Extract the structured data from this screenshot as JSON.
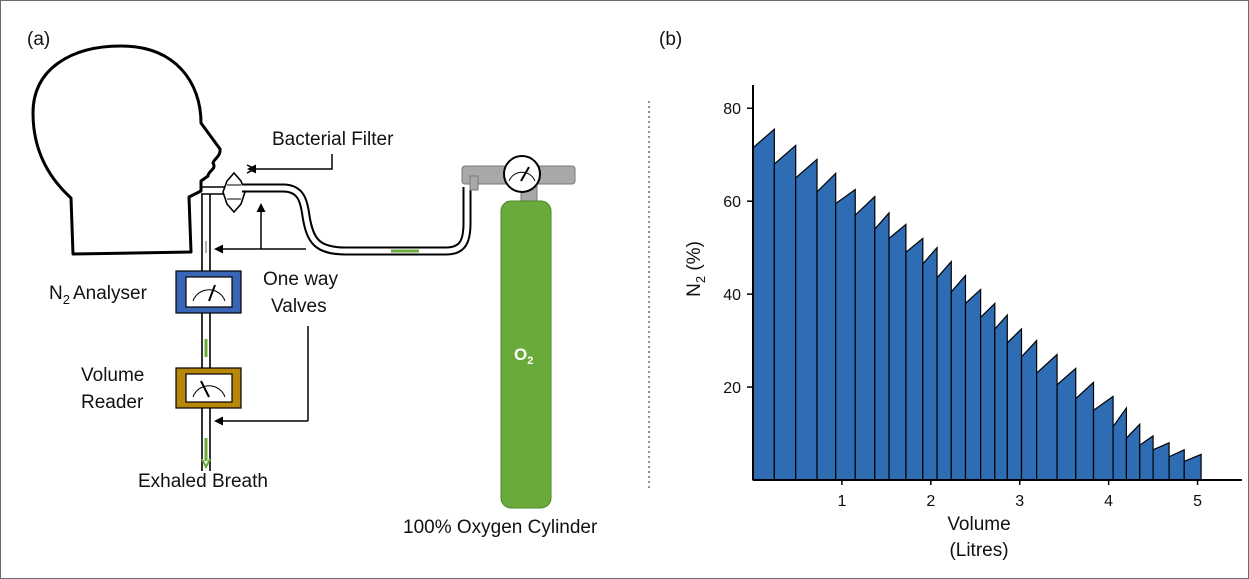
{
  "panel_a": {
    "label": "(a)",
    "labels": {
      "bacterial_filter": "Bacterial Filter",
      "n2_analyser": "Analyser",
      "n2_prefix": "N",
      "n2_sub": "2",
      "one_way": "One way",
      "valves": "Valves",
      "volume": "Volume",
      "reader": "Reader",
      "exhaled": "Exhaled Breath",
      "cylinder_caption": "100% Oxygen Cylinder",
      "o2_main": "O",
      "o2_sub": "2"
    },
    "colors": {
      "analyser_box": "#3a66b8",
      "reader_box": "#b8860b",
      "cylinder": "#6aaa3a",
      "regulator": "#a8a8a8",
      "flow_marks": "#6aaa3a"
    }
  },
  "panel_b": {
    "label": "(b)"
  },
  "chart_data": {
    "type": "bar",
    "xlabel": "Volume",
    "xlabel_unit": "(Litres)",
    "ylabel_main": "N",
    "ylabel_sub": "2",
    "ylabel_unit": " (%)",
    "xlim": [
      0,
      5.5
    ],
    "ylim": [
      0,
      85
    ],
    "x_ticks": [
      1,
      2,
      3,
      4,
      5
    ],
    "y_ticks": [
      20,
      40,
      60,
      80
    ],
    "bar_color": "#2e6db4",
    "breaths": [
      {
        "x0": 0.0,
        "x1": 0.24,
        "start": 71.5,
        "end": 75.5
      },
      {
        "x0": 0.24,
        "x1": 0.48,
        "start": 68.0,
        "end": 72.0
      },
      {
        "x0": 0.48,
        "x1": 0.72,
        "start": 65.0,
        "end": 69.0
      },
      {
        "x0": 0.72,
        "x1": 0.93,
        "start": 62.0,
        "end": 66.0
      },
      {
        "x0": 0.93,
        "x1": 1.15,
        "start": 59.5,
        "end": 62.5
      },
      {
        "x0": 1.15,
        "x1": 1.37,
        "start": 57.0,
        "end": 61.0
      },
      {
        "x0": 1.37,
        "x1": 1.53,
        "start": 54.0,
        "end": 57.5
      },
      {
        "x0": 1.53,
        "x1": 1.72,
        "start": 52.0,
        "end": 55.0
      },
      {
        "x0": 1.72,
        "x1": 1.91,
        "start": 49.0,
        "end": 52.0
      },
      {
        "x0": 1.91,
        "x1": 2.07,
        "start": 46.5,
        "end": 50.0
      },
      {
        "x0": 2.07,
        "x1": 2.23,
        "start": 43.5,
        "end": 47.0
      },
      {
        "x0": 2.23,
        "x1": 2.39,
        "start": 40.5,
        "end": 44.0
      },
      {
        "x0": 2.39,
        "x1": 2.56,
        "start": 38.0,
        "end": 41.0
      },
      {
        "x0": 2.56,
        "x1": 2.72,
        "start": 35.0,
        "end": 38.0
      },
      {
        "x0": 2.72,
        "x1": 2.86,
        "start": 32.5,
        "end": 35.5
      },
      {
        "x0": 2.86,
        "x1": 3.02,
        "start": 29.5,
        "end": 32.5
      },
      {
        "x0": 3.02,
        "x1": 3.19,
        "start": 26.5,
        "end": 30.0
      },
      {
        "x0": 3.19,
        "x1": 3.42,
        "start": 23.0,
        "end": 27.0
      },
      {
        "x0": 3.42,
        "x1": 3.63,
        "start": 20.5,
        "end": 24.0
      },
      {
        "x0": 3.63,
        "x1": 3.83,
        "start": 17.5,
        "end": 21.0
      },
      {
        "x0": 3.83,
        "x1": 4.05,
        "start": 15.0,
        "end": 18.0
      },
      {
        "x0": 4.05,
        "x1": 4.2,
        "start": 11.5,
        "end": 15.5
      },
      {
        "x0": 4.2,
        "x1": 4.35,
        "start": 9.0,
        "end": 12.0
      },
      {
        "x0": 4.35,
        "x1": 4.5,
        "start": 7.5,
        "end": 9.5
      },
      {
        "x0": 4.5,
        "x1": 4.68,
        "start": 6.5,
        "end": 8.0
      },
      {
        "x0": 4.68,
        "x1": 4.85,
        "start": 5.0,
        "end": 6.5
      },
      {
        "x0": 4.85,
        "x1": 5.04,
        "start": 4.0,
        "end": 5.5
      }
    ]
  }
}
